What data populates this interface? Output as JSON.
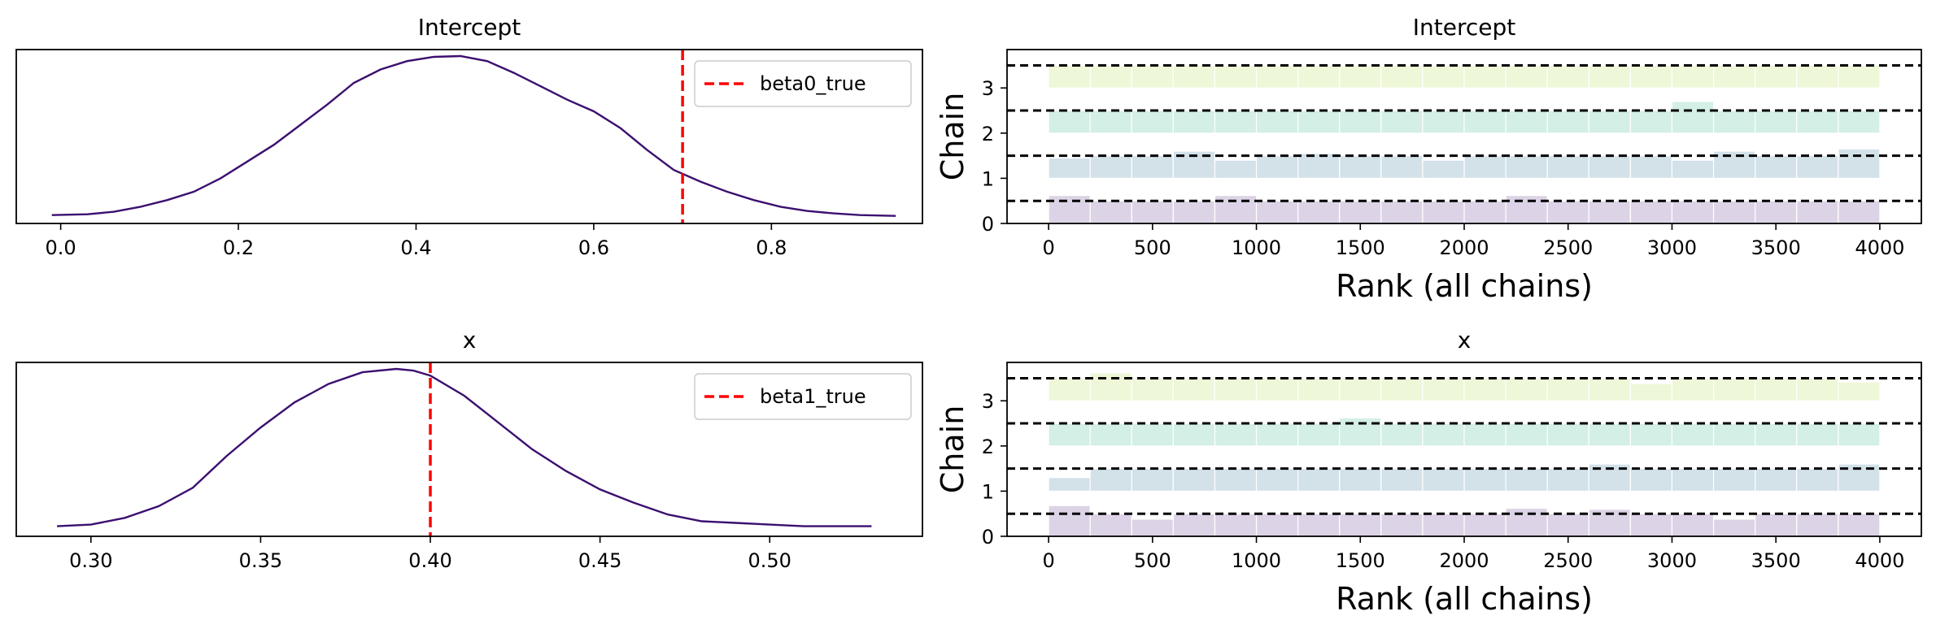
{
  "chart_data": [
    {
      "type": "line",
      "title": "Intercept",
      "xlabel": "",
      "ylabel": "",
      "xlim": [
        -0.05,
        0.97
      ],
      "xticks": [
        "0.0",
        "0.2",
        "0.4",
        "0.6",
        "0.8"
      ],
      "x": [
        -0.01,
        0.03,
        0.06,
        0.09,
        0.12,
        0.15,
        0.18,
        0.21,
        0.24,
        0.27,
        0.3,
        0.33,
        0.36,
        0.39,
        0.42,
        0.45,
        0.48,
        0.51,
        0.54,
        0.57,
        0.6,
        0.63,
        0.66,
        0.69,
        0.72,
        0.75,
        0.78,
        0.81,
        0.84,
        0.87,
        0.9,
        0.94
      ],
      "y": [
        0.05,
        0.055,
        0.07,
        0.1,
        0.14,
        0.19,
        0.27,
        0.37,
        0.47,
        0.59,
        0.71,
        0.84,
        0.92,
        0.97,
        0.995,
        1.0,
        0.97,
        0.9,
        0.82,
        0.74,
        0.67,
        0.57,
        0.44,
        0.32,
        0.25,
        0.19,
        0.14,
        0.1,
        0.075,
        0.06,
        0.05,
        0.045
      ],
      "line_color": "#3b0f70",
      "ref_line": {
        "x": 0.7,
        "label": "beta0_true",
        "color": "#ff0000"
      },
      "legend_position": "top-right"
    },
    {
      "type": "bar",
      "title": "Intercept",
      "xlabel": "Rank (all chains)",
      "ylabel": "Chain",
      "xlim": [
        -200,
        4200
      ],
      "ylim": [
        0,
        3.85
      ],
      "xticks": [
        "0",
        "500",
        "1000",
        "1500",
        "2000",
        "2500",
        "3000",
        "3500",
        "4000"
      ],
      "yticks": [
        "0",
        "1",
        "2",
        "3"
      ],
      "bin_width": 200,
      "chain_colors": [
        "#ddd3e6",
        "#d3e1e9",
        "#d3efe6",
        "#eef7d8"
      ],
      "chains": [
        [
          0.62,
          0.5,
          0.5,
          0.5,
          0.62,
          0.5,
          0.5,
          0.5,
          0.5,
          0.5,
          0.5,
          0.62,
          0.5,
          0.5,
          0.5,
          0.5,
          0.5,
          0.5,
          0.5,
          0.5
        ],
        [
          0.45,
          0.5,
          0.5,
          0.6,
          0.4,
          0.5,
          0.55,
          0.5,
          0.5,
          0.4,
          0.5,
          0.5,
          0.5,
          0.5,
          0.5,
          0.4,
          0.6,
          0.5,
          0.5,
          0.65
        ],
        [
          0.5,
          0.5,
          0.5,
          0.5,
          0.5,
          0.5,
          0.5,
          0.5,
          0.5,
          0.5,
          0.5,
          0.5,
          0.5,
          0.5,
          0.5,
          0.7,
          0.5,
          0.5,
          0.5,
          0.5
        ],
        [
          0.5,
          0.5,
          0.5,
          0.5,
          0.5,
          0.5,
          0.5,
          0.5,
          0.5,
          0.5,
          0.5,
          0.5,
          0.5,
          0.5,
          0.5,
          0.5,
          0.5,
          0.5,
          0.5,
          0.5
        ]
      ],
      "dashed_levels": [
        0.5,
        1.5,
        2.5,
        3.5
      ]
    },
    {
      "type": "line",
      "title": "x",
      "xlabel": "",
      "ylabel": "",
      "xlim": [
        0.278,
        0.545
      ],
      "xticks": [
        "0.30",
        "0.35",
        "0.40",
        "0.45",
        "0.50"
      ],
      "x": [
        0.29,
        0.3,
        0.31,
        0.32,
        0.33,
        0.34,
        0.35,
        0.36,
        0.37,
        0.38,
        0.39,
        0.395,
        0.4,
        0.41,
        0.42,
        0.43,
        0.44,
        0.45,
        0.46,
        0.47,
        0.48,
        0.49,
        0.5,
        0.51,
        0.52,
        0.53
      ],
      "y": [
        0.06,
        0.07,
        0.11,
        0.18,
        0.29,
        0.48,
        0.65,
        0.8,
        0.91,
        0.98,
        1.0,
        0.99,
        0.96,
        0.84,
        0.68,
        0.52,
        0.39,
        0.28,
        0.2,
        0.13,
        0.09,
        0.08,
        0.07,
        0.06,
        0.06,
        0.06
      ],
      "line_color": "#3b0f70",
      "ref_line": {
        "x": 0.4,
        "label": "beta1_true",
        "color": "#ff0000"
      },
      "legend_position": "top-right"
    },
    {
      "type": "bar",
      "title": "x",
      "xlabel": "Rank (all chains)",
      "ylabel": "Chain",
      "xlim": [
        -200,
        4200
      ],
      "ylim": [
        0,
        3.85
      ],
      "xticks": [
        "0",
        "500",
        "1000",
        "1500",
        "2000",
        "2500",
        "3000",
        "3500",
        "4000"
      ],
      "yticks": [
        "0",
        "1",
        "2",
        "3"
      ],
      "bin_width": 200,
      "chain_colors": [
        "#ddd3e6",
        "#d3e1e9",
        "#d3efe6",
        "#eef7d8"
      ],
      "chains": [
        [
          0.68,
          0.5,
          0.38,
          0.5,
          0.5,
          0.5,
          0.5,
          0.5,
          0.5,
          0.5,
          0.5,
          0.62,
          0.5,
          0.6,
          0.5,
          0.5,
          0.38,
          0.5,
          0.5,
          0.5
        ],
        [
          0.3,
          0.5,
          0.5,
          0.5,
          0.5,
          0.5,
          0.5,
          0.5,
          0.5,
          0.5,
          0.5,
          0.5,
          0.5,
          0.6,
          0.5,
          0.5,
          0.5,
          0.5,
          0.5,
          0.6
        ],
        [
          0.5,
          0.5,
          0.5,
          0.5,
          0.5,
          0.5,
          0.5,
          0.62,
          0.5,
          0.5,
          0.5,
          0.5,
          0.5,
          0.5,
          0.5,
          0.5,
          0.5,
          0.5,
          0.5,
          0.5
        ],
        [
          0.5,
          0.62,
          0.5,
          0.5,
          0.5,
          0.5,
          0.5,
          0.5,
          0.5,
          0.5,
          0.5,
          0.5,
          0.5,
          0.5,
          0.38,
          0.5,
          0.5,
          0.5,
          0.5,
          0.42
        ]
      ],
      "dashed_levels": [
        0.5,
        1.5,
        2.5,
        3.5
      ]
    }
  ]
}
